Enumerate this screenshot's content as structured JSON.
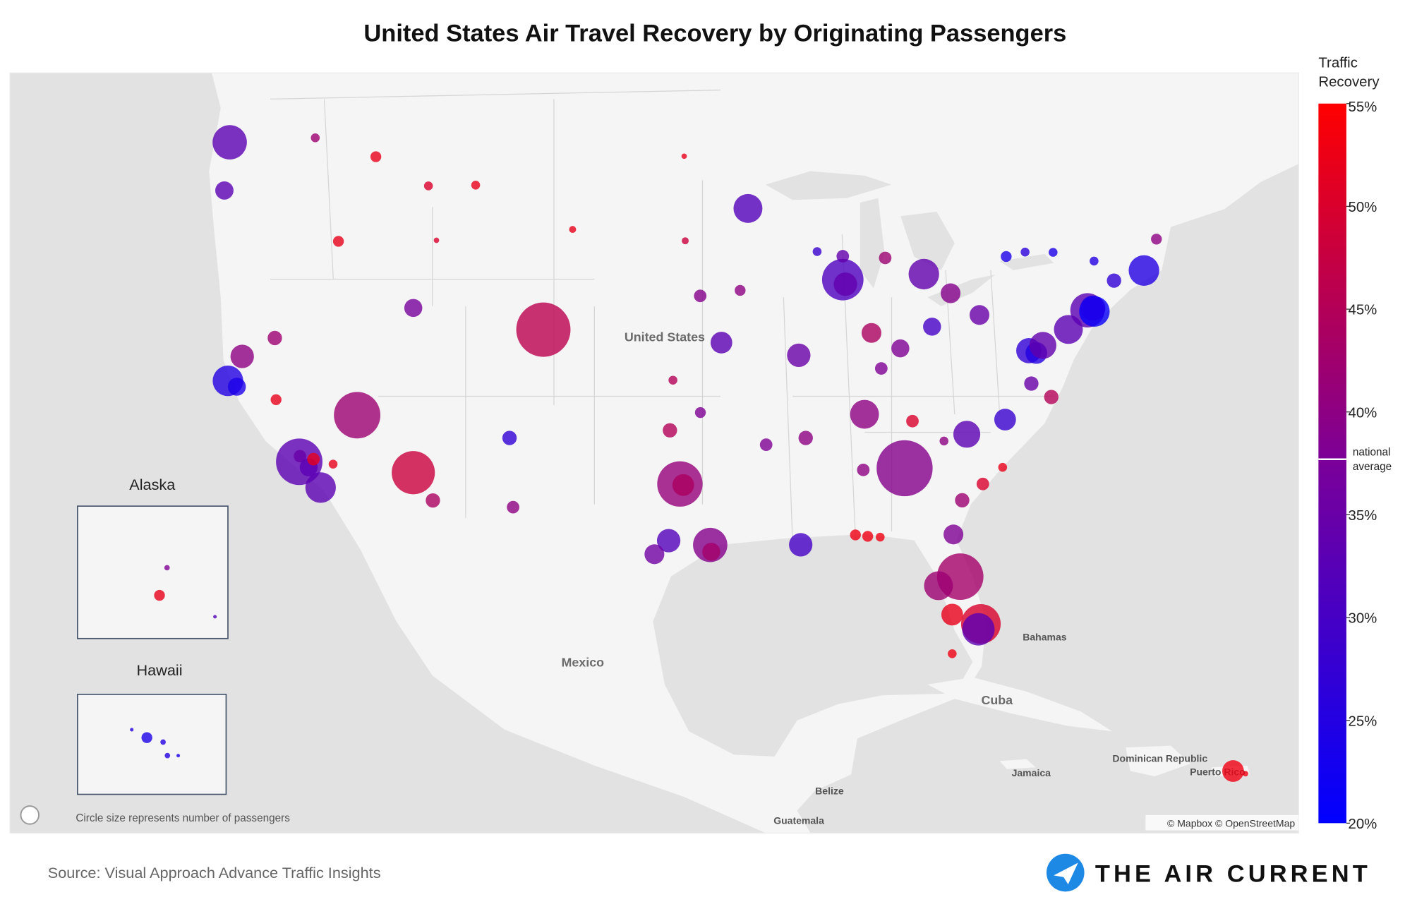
{
  "map": {
    "title": "United States Air Travel Recovery by Originating Passengers",
    "legend": {
      "title": [
        "Traffic",
        "Recovery"
      ],
      "range": [
        20,
        55
      ],
      "ticks": [
        {
          "value": 55,
          "label": "55%"
        },
        {
          "value": 50,
          "label": "50%"
        },
        {
          "value": 45,
          "label": "45%"
        },
        {
          "value": 40,
          "label": "40%"
        },
        {
          "value": 35,
          "label": "35%"
        },
        {
          "value": 30,
          "label": "30%"
        },
        {
          "value": 25,
          "label": "25%"
        },
        {
          "value": 20,
          "label": "20%"
        }
      ],
      "national_average": {
        "value": 37.7,
        "label": [
          "national",
          "average"
        ]
      }
    },
    "place_labels": [
      "United States",
      "Mexico",
      "Bahamas",
      "Cuba",
      "Jamaica",
      "Dominican Republic",
      "Puerto Rico",
      "Belize",
      "Guatemala"
    ],
    "insets": [
      "Alaska",
      "Hawaii"
    ],
    "size_note": "Circle size represents number of passengers",
    "attribution": "© Mapbox © OpenStreetMap",
    "source": "Source: Visual Approach Advance Traffic Insights",
    "brand": "THE AIR CURRENT",
    "bubbles": [
      {
        "lon": -122.3,
        "lat": 47.45,
        "recovery": 33,
        "passengers": 12
      },
      {
        "lon": -122.6,
        "lat": 45.59,
        "recovery": 33,
        "passengers": 3.4
      },
      {
        "lon": -117.5,
        "lat": 47.62,
        "recovery": 42,
        "passengers": 0.8
      },
      {
        "lon": -116.2,
        "lat": 43.56,
        "recovery": 52,
        "passengers": 1.2
      },
      {
        "lon": -112.0,
        "lat": 40.79,
        "recovery": 37,
        "passengers": 3.3
      },
      {
        "lon": -115.15,
        "lat": 36.08,
        "recovery": 42,
        "passengers": 22
      },
      {
        "lon": -112.0,
        "lat": 33.43,
        "recovery": 48,
        "passengers": 19
      },
      {
        "lon": -104.7,
        "lat": 39.86,
        "recovery": 46,
        "passengers": 30
      },
      {
        "lon": -118.4,
        "lat": 33.94,
        "recovery": 33,
        "passengers": 22
      },
      {
        "lon": -118.36,
        "lat": 34.2,
        "recovery": 35,
        "passengers": 1.6
      },
      {
        "lon": -117.87,
        "lat": 33.68,
        "recovery": 33,
        "passengers": 3.3
      },
      {
        "lon": -117.6,
        "lat": 34.06,
        "recovery": 52,
        "passengers": 1.6
      },
      {
        "lon": -116.5,
        "lat": 33.83,
        "recovery": 52,
        "passengers": 0.8
      },
      {
        "lon": -122.4,
        "lat": 37.62,
        "recovery": 25,
        "passengers": 9.5
      },
      {
        "lon": -121.9,
        "lat": 37.36,
        "recovery": 24,
        "passengers": 3.3
      },
      {
        "lon": -121.6,
        "lat": 38.7,
        "recovery": 40,
        "passengers": 5.6
      },
      {
        "lon": -117.2,
        "lat": 32.73,
        "recovery": 33,
        "passengers": 9.5
      },
      {
        "lon": -119.77,
        "lat": 39.5,
        "recovery": 42,
        "passengers": 2.1
      },
      {
        "lon": -119.7,
        "lat": 36.78,
        "recovery": 52,
        "passengers": 1.2
      },
      {
        "lon": -110.9,
        "lat": 32.12,
        "recovery": 44,
        "passengers": 2.1
      },
      {
        "lon": -106.6,
        "lat": 35.04,
        "recovery": 27,
        "passengers": 2.1
      },
      {
        "lon": -106.4,
        "lat": 31.8,
        "recovery": 40,
        "passengers": 1.6
      },
      {
        "lon": -97.04,
        "lat": 32.9,
        "recovery": 41,
        "passengers": 21
      },
      {
        "lon": -96.85,
        "lat": 32.85,
        "recovery": 44,
        "passengers": 4.8
      },
      {
        "lon": -95.34,
        "lat": 29.98,
        "recovery": 39,
        "passengers": 12
      },
      {
        "lon": -95.28,
        "lat": 29.65,
        "recovery": 43,
        "passengers": 3.3
      },
      {
        "lon": -97.67,
        "lat": 30.19,
        "recovery": 32,
        "passengers": 5.6
      },
      {
        "lon": -98.47,
        "lat": 29.53,
        "recovery": 36,
        "passengers": 4.0
      },
      {
        "lon": -97.6,
        "lat": 35.39,
        "recovery": 45,
        "passengers": 2.1
      },
      {
        "lon": -95.89,
        "lat": 36.2,
        "recovery": 38,
        "passengers": 1.2
      },
      {
        "lon": -94.71,
        "lat": 39.3,
        "recovery": 33,
        "passengers": 4.8
      },
      {
        "lon": -95.9,
        "lat": 41.3,
        "recovery": 39,
        "passengers": 1.6
      },
      {
        "lon": -93.22,
        "lat": 44.88,
        "recovery": 32,
        "passengers": 8.5
      },
      {
        "lon": -87.9,
        "lat": 41.98,
        "recovery": 31,
        "passengers": 17.5
      },
      {
        "lon": -87.75,
        "lat": 41.79,
        "recovery": 34,
        "passengers": 5.6
      },
      {
        "lon": -87.9,
        "lat": 42.95,
        "recovery": 34,
        "passengers": 1.6
      },
      {
        "lon": -90.37,
        "lat": 38.75,
        "recovery": 35,
        "passengers": 5.6
      },
      {
        "lon": -83.35,
        "lat": 42.21,
        "recovery": 34,
        "passengers": 9.5
      },
      {
        "lon": -81.85,
        "lat": 41.41,
        "recovery": 39,
        "passengers": 4.0
      },
      {
        "lon": -80.23,
        "lat": 40.49,
        "recovery": 35,
        "passengers": 4.0
      },
      {
        "lon": -82.89,
        "lat": 39.99,
        "recovery": 30,
        "passengers": 3.3
      },
      {
        "lon": -86.29,
        "lat": 39.72,
        "recovery": 44,
        "passengers": 4.0
      },
      {
        "lon": -84.67,
        "lat": 39.05,
        "recovery": 38,
        "passengers": 3.3
      },
      {
        "lon": -85.74,
        "lat": 38.17,
        "recovery": 38,
        "passengers": 1.6
      },
      {
        "lon": -86.68,
        "lat": 36.12,
        "recovery": 40,
        "passengers": 8.5
      },
      {
        "lon": -89.98,
        "lat": 35.04,
        "recovery": 40,
        "passengers": 2.1
      },
      {
        "lon": -84.43,
        "lat": 33.64,
        "recovery": 39,
        "passengers": 32
      },
      {
        "lon": -80.94,
        "lat": 35.21,
        "recovery": 33,
        "passengers": 7.4
      },
      {
        "lon": -78.79,
        "lat": 35.88,
        "recovery": 28,
        "passengers": 4.8
      },
      {
        "lon": -77.46,
        "lat": 38.95,
        "recovery": 27,
        "passengers": 6.5
      },
      {
        "lon": -77.04,
        "lat": 38.85,
        "recovery": 25,
        "passengers": 4.8
      },
      {
        "lon": -76.67,
        "lat": 39.18,
        "recovery": 34,
        "passengers": 7.4
      },
      {
        "lon": -75.24,
        "lat": 39.87,
        "recovery": 33,
        "passengers": 8.5
      },
      {
        "lon": -74.17,
        "lat": 40.69,
        "recovery": 33,
        "passengers": 12
      },
      {
        "lon": -73.78,
        "lat": 40.64,
        "recovery": 21,
        "passengers": 9.5
      },
      {
        "lon": -73.87,
        "lat": 40.78,
        "recovery": 24,
        "passengers": 6.5
      },
      {
        "lon": -71.0,
        "lat": 42.36,
        "recovery": 25,
        "passengers": 9.5
      },
      {
        "lon": -81.31,
        "lat": 28.43,
        "recovery": 43,
        "passengers": 22
      },
      {
        "lon": -82.53,
        "lat": 27.98,
        "recovery": 42,
        "passengers": 8.5
      },
      {
        "lon": -80.15,
        "lat": 26.07,
        "recovery": 50,
        "passengers": 16
      },
      {
        "lon": -80.29,
        "lat": 25.8,
        "recovery": 33,
        "passengers": 10.7
      },
      {
        "lon": -81.76,
        "lat": 26.54,
        "recovery": 52,
        "passengers": 4.8
      },
      {
        "lon": -81.69,
        "lat": 30.49,
        "recovery": 38,
        "passengers": 4.0
      },
      {
        "lon": -90.26,
        "lat": 29.99,
        "recovery": 30,
        "passengers": 5.6
      },
      {
        "lon": -78.73,
        "lat": 42.94,
        "recovery": 24,
        "passengers": 1.2
      },
      {
        "lon": -77.67,
        "lat": 43.12,
        "recovery": 26,
        "passengers": 0.8
      },
      {
        "lon": -76.1,
        "lat": 43.11,
        "recovery": 24,
        "passengers": 0.8
      },
      {
        "lon": -73.8,
        "lat": 42.75,
        "recovery": 25,
        "passengers": 0.8
      },
      {
        "lon": -72.68,
        "lat": 41.94,
        "recovery": 27,
        "passengers": 2.1
      },
      {
        "lon": -70.3,
        "lat": 43.65,
        "recovery": 40,
        "passengers": 1.2
      },
      {
        "lon": -89.34,
        "lat": 43.14,
        "recovery": 28,
        "passengers": 0.8
      },
      {
        "lon": -85.52,
        "lat": 42.88,
        "recovery": 42,
        "passengers": 1.6
      },
      {
        "lon": -93.66,
        "lat": 41.53,
        "recovery": 40,
        "passengers": 1.2
      },
      {
        "lon": -108.5,
        "lat": 45.8,
        "recovery": 52,
        "passengers": 0.8
      },
      {
        "lon": -111.15,
        "lat": 45.77,
        "recovery": 50,
        "passengers": 0.8
      },
      {
        "lon": -114.1,
        "lat": 46.9,
        "recovery": 52,
        "passengers": 1.2
      },
      {
        "lon": -103.06,
        "lat": 44.04,
        "recovery": 52,
        "passengers": 0.5
      },
      {
        "lon": -96.8,
        "lat": 46.92,
        "recovery": 52,
        "passengers": 0.3
      },
      {
        "lon": -96.74,
        "lat": 43.58,
        "recovery": 48,
        "passengers": 0.5
      },
      {
        "lon": -110.7,
        "lat": 43.6,
        "recovery": 50,
        "passengers": 0.3
      },
      {
        "lon": -87.19,
        "lat": 30.47,
        "recovery": 53,
        "passengers": 1.2
      },
      {
        "lon": -86.5,
        "lat": 30.4,
        "recovery": 53,
        "passengers": 1.2
      },
      {
        "lon": -85.8,
        "lat": 30.36,
        "recovery": 53,
        "passengers": 0.8
      },
      {
        "lon": -81.2,
        "lat": 32.13,
        "recovery": 42,
        "passengers": 2.1
      },
      {
        "lon": -80.04,
        "lat": 32.9,
        "recovery": 50,
        "passengers": 1.6
      },
      {
        "lon": -78.93,
        "lat": 33.68,
        "recovery": 52,
        "passengers": 0.8
      },
      {
        "lon": -86.75,
        "lat": 33.56,
        "recovery": 40,
        "passengers": 1.6
      },
      {
        "lon": -83.99,
        "lat": 35.81,
        "recovery": 50,
        "passengers": 1.6
      },
      {
        "lon": -77.32,
        "lat": 37.5,
        "recovery": 35,
        "passengers": 2.1
      },
      {
        "lon": -76.2,
        "lat": 36.9,
        "recovery": 45,
        "passengers": 2.1
      },
      {
        "lon": -82.22,
        "lat": 34.9,
        "recovery": 40,
        "passengers": 0.8
      },
      {
        "lon": -92.2,
        "lat": 34.73,
        "recovery": 38,
        "passengers": 1.6
      },
      {
        "lon": -97.43,
        "lat": 37.65,
        "recovery": 45,
        "passengers": 0.8
      },
      {
        "lon": -81.76,
        "lat": 24.56,
        "recovery": 53,
        "passengers": 0.8
      },
      {
        "lon": -66.0,
        "lat": 18.44,
        "recovery": 53,
        "passengers": 4.8
      },
      {
        "lon": -65.3,
        "lat": 18.3,
        "recovery": 53,
        "passengers": 0.3
      }
    ],
    "alaska_bubbles": [
      {
        "lon": -150.0,
        "lat": 61.2,
        "recovery": 52,
        "passengers": 1.2
      },
      {
        "lon": -147.9,
        "lat": 64.8,
        "recovery": 38,
        "passengers": 0.3
      },
      {
        "lon": -134.6,
        "lat": 58.4,
        "recovery": 32,
        "passengers": 0.13
      }
    ],
    "hawaii_bubbles": [
      {
        "lon": -159.3,
        "lat": 22.0,
        "recovery": 25,
        "passengers": 0.13
      },
      {
        "lon": -157.9,
        "lat": 21.3,
        "recovery": 24,
        "passengers": 1.2
      },
      {
        "lon": -156.4,
        "lat": 20.9,
        "recovery": 25,
        "passengers": 0.3
      },
      {
        "lon": -156.0,
        "lat": 19.7,
        "recovery": 25,
        "passengers": 0.3
      },
      {
        "lon": -155.0,
        "lat": 19.7,
        "recovery": 24,
        "passengers": 0.13
      }
    ]
  }
}
